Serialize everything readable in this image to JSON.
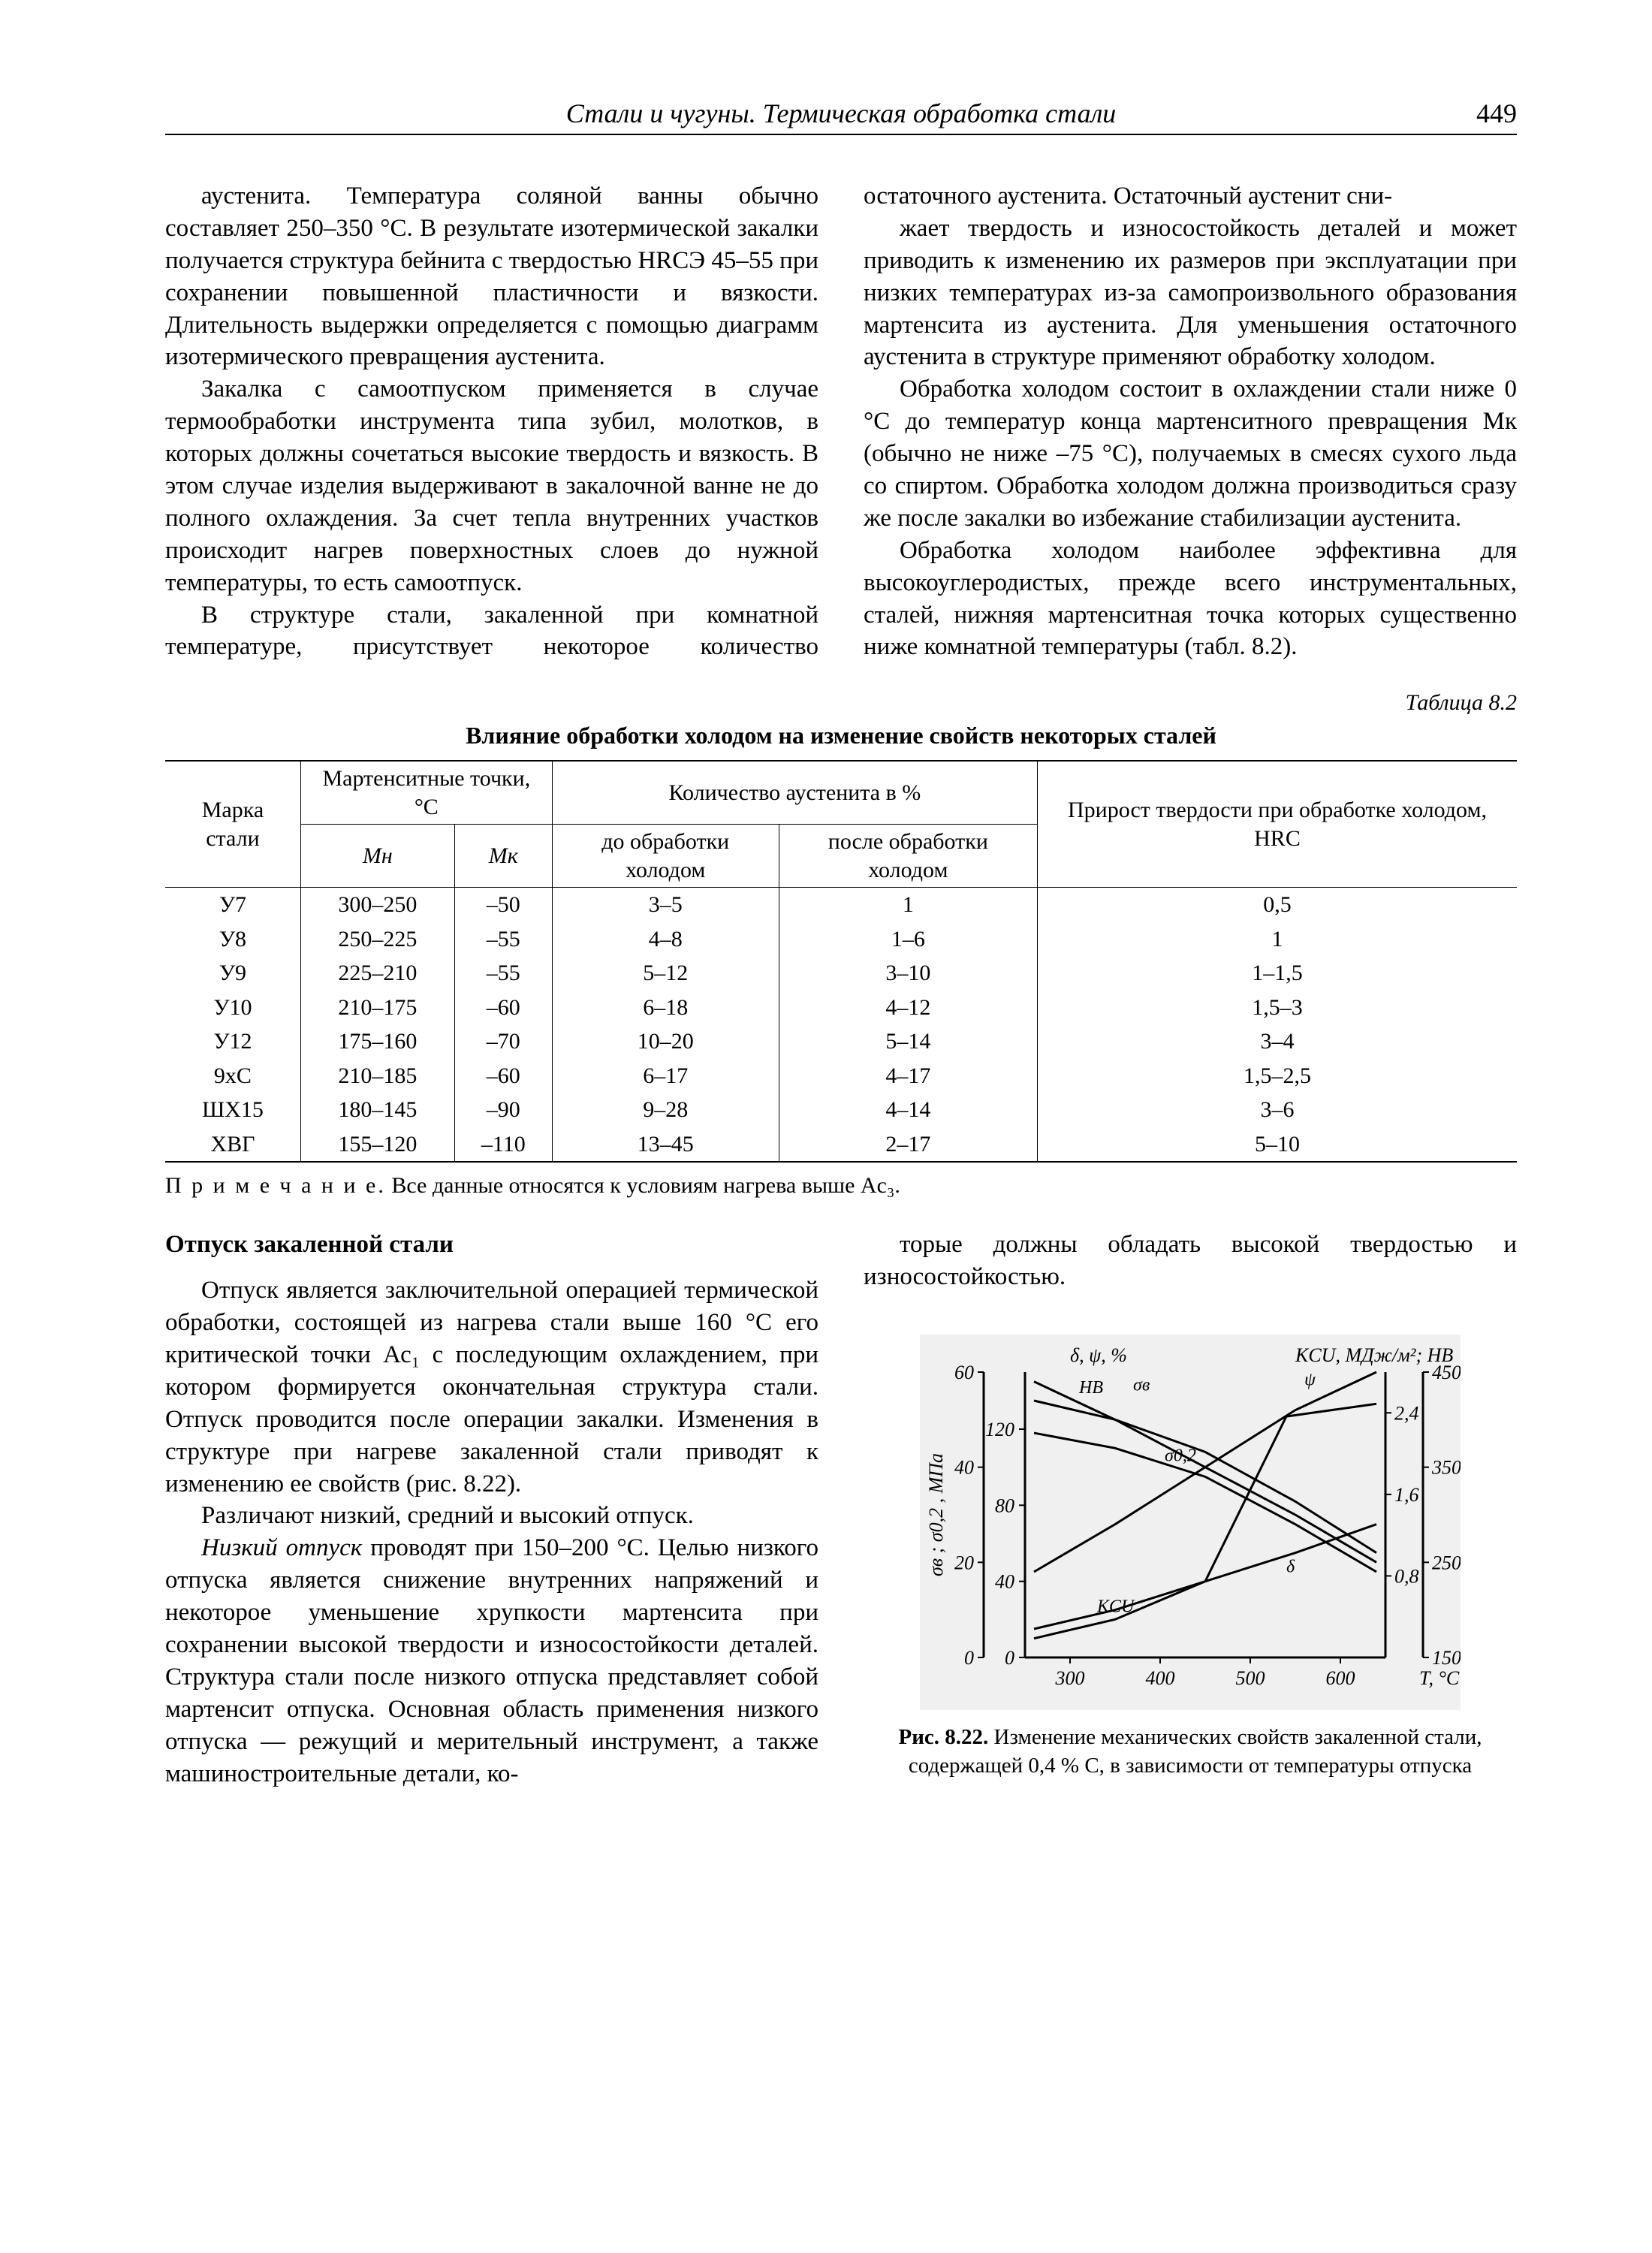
{
  "header": {
    "running_title": "Стали и чугуны. Термическая обработка стали",
    "page_number": "449"
  },
  "top_text": {
    "p1": "аустенита. Температура соляной ванны обычно составляет 250–350 °С. В результате изотермической закалки получается структура бейнита с твердостью HRCЭ 45–55 при сохранении повышенной пластичности и вязкости. Длительность выдержки определяется с помощью диаграмм изотермического превращения аустенита.",
    "p2": "Закалка с самоотпуском применяется в случае термообработки инструмента типа зубил, молотков, в которых должны сочетаться высокие твердость и вязкость. В этом случае изделия выдерживают в закалочной ванне не до полного охлаждения. За счет тепла внутренних участков происходит нагрев поверхностных слоев до нужной температуры, то есть самоотпуск.",
    "p3": "В структуре стали, закаленной при комнатной температуре, присутствует некоторое количество остаточного аустенита. Остаточный аустенит сни-",
    "p4": "жает твердость и износостойкость деталей и может приводить к изменению их размеров при эксплуатации при низких температурах из-за самопроизвольного образования мартенсита из аустенита. Для уменьшения остаточного аустенита в структуре применяют обработку холодом.",
    "p5": "Обработка холодом состоит в охлаждении стали ниже 0 °С до температур конца мартенситного превращения Мк (обычно не ниже –75 °С), получаемых в смесях сухого льда со спиртом. Обработка холодом должна производиться сразу же после закалки во избежание стабилизации аустенита.",
    "p6": "Обработка холодом наиболее эффективна для высокоуглеродистых, прежде всего инструментальных, сталей, нижняя мартенситная точка которых существенно ниже комнатной температуры (табл. 8.2)."
  },
  "table": {
    "label": "Таблица 8.2",
    "title": "Влияние обработки холодом на изменение свойств некоторых сталей",
    "head": {
      "c0": "Марка стали",
      "g1": "Мартенситные точки, °С",
      "c1": "Мн",
      "c2": "Мк",
      "g2": "Количество аустенита в %",
      "c3": "до обработки холодом",
      "c4": "после обработки холодом",
      "c5": "Прирост твердости при обработке холодом, HRC"
    },
    "rows": [
      [
        "У7",
        "300–250",
        "–50",
        "3–5",
        "1",
        "0,5"
      ],
      [
        "У8",
        "250–225",
        "–55",
        "4–8",
        "1–6",
        "1"
      ],
      [
        "У9",
        "225–210",
        "–55",
        "5–12",
        "3–10",
        "1–1,5"
      ],
      [
        "У10",
        "210–175",
        "–60",
        "6–18",
        "4–12",
        "1,5–3"
      ],
      [
        "У12",
        "175–160",
        "–70",
        "10–20",
        "5–14",
        "3–4"
      ],
      [
        "9хС",
        "210–185",
        "–60",
        "6–17",
        "4–17",
        "1,5–2,5"
      ],
      [
        "ШХ15",
        "180–145",
        "–90",
        "9–28",
        "4–14",
        "3–6"
      ],
      [
        "ХВГ",
        "155–120",
        "–110",
        "13–45",
        "2–17",
        "5–10"
      ]
    ],
    "note_label": "П р и м е ч а н и е.",
    "note_text": " Все данные относятся к условиям нагрева выше Aс₃."
  },
  "lower_left": {
    "heading": "Отпуск закаленной стали",
    "p1": "Отпуск является заключительной операцией термической обработки, состоящей из нагрева стали выше 160 °С его критической точки Ас₁ с последующим охлаждением, при котором формируется окончательная структура стали. Отпуск проводится после операции закалки. Изменения в структуре при нагреве закаленной стали приводят к изменению ее свойств (рис. 8.22).",
    "p2": "Различают низкий, средний и высокий отпуск.",
    "p3a": "Низкий отпуск",
    "p3b": " проводят при 150–200 °С. Целью низкого отпуска является снижение внутренних напряжений и некоторое уменьшение хрупкости мартенсита при сохранении высокой твердости и износостойкости деталей. Структура стали после низкого отпуска представляет собой мартенсит отпуска. Основная область применения низкого отпуска — режущий и мерительный инструмент, а также машиностроительные детали, ко-"
  },
  "lower_right": {
    "p1": "торые должны обладать высокой твердостью и износостойкостью."
  },
  "figure": {
    "caption_bold": "Рис. 8.22.",
    "caption_rest": " Изменение механических свойств закаленной стали, содержащей 0,4 % С, в зависимости от температуры отпуска",
    "axes": {
      "left1_label": "σв ; σ0,2 , МПа",
      "left1_ticks": [
        0,
        40,
        80,
        120
      ],
      "left2_label": "δ, ψ, %",
      "left2_ticks": [
        0,
        20,
        40,
        60
      ],
      "right1_label": "KCU, МДж/м²; HB",
      "right1_ticks": [
        0.8,
        1.6,
        2.4
      ],
      "right2_ticks": [
        150,
        250,
        350,
        450
      ],
      "x_label": "T, °C",
      "x_ticks": [
        300,
        400,
        500,
        600
      ]
    },
    "series": {
      "sigma_v": {
        "label": "σв",
        "pts": [
          [
            260,
            135
          ],
          [
            350,
            125
          ],
          [
            450,
            108
          ],
          [
            550,
            82
          ],
          [
            640,
            55
          ]
        ],
        "color": "#000"
      },
      "sigma_02": {
        "label": "σ0,2",
        "pts": [
          [
            260,
            118
          ],
          [
            350,
            110
          ],
          [
            450,
            95
          ],
          [
            550,
            70
          ],
          [
            640,
            45
          ]
        ],
        "color": "#000"
      },
      "psi": {
        "label": "ψ",
        "pts": [
          [
            260,
            18
          ],
          [
            350,
            28
          ],
          [
            450,
            40
          ],
          [
            550,
            52
          ],
          [
            640,
            60
          ]
        ],
        "color": "#000"
      },
      "delta": {
        "label": "δ",
        "pts": [
          [
            260,
            6
          ],
          [
            350,
            10
          ],
          [
            450,
            16
          ],
          [
            550,
            22
          ],
          [
            640,
            28
          ]
        ],
        "color": "#000"
      },
      "HB": {
        "label": "HB",
        "pts": [
          [
            260,
            58
          ],
          [
            350,
            50
          ],
          [
            450,
            40
          ],
          [
            550,
            30
          ],
          [
            640,
            20
          ]
        ],
        "color": "#000"
      },
      "KCU": {
        "label": "KCU",
        "pts": [
          [
            260,
            3
          ],
          [
            350,
            6
          ],
          [
            450,
            12
          ],
          [
            540,
            38
          ],
          [
            640,
            40
          ]
        ],
        "color": "#000"
      }
    },
    "style": {
      "bg": "#f0f0f0",
      "axis_color": "#000000",
      "line_width": 3,
      "font_size": 26
    }
  }
}
